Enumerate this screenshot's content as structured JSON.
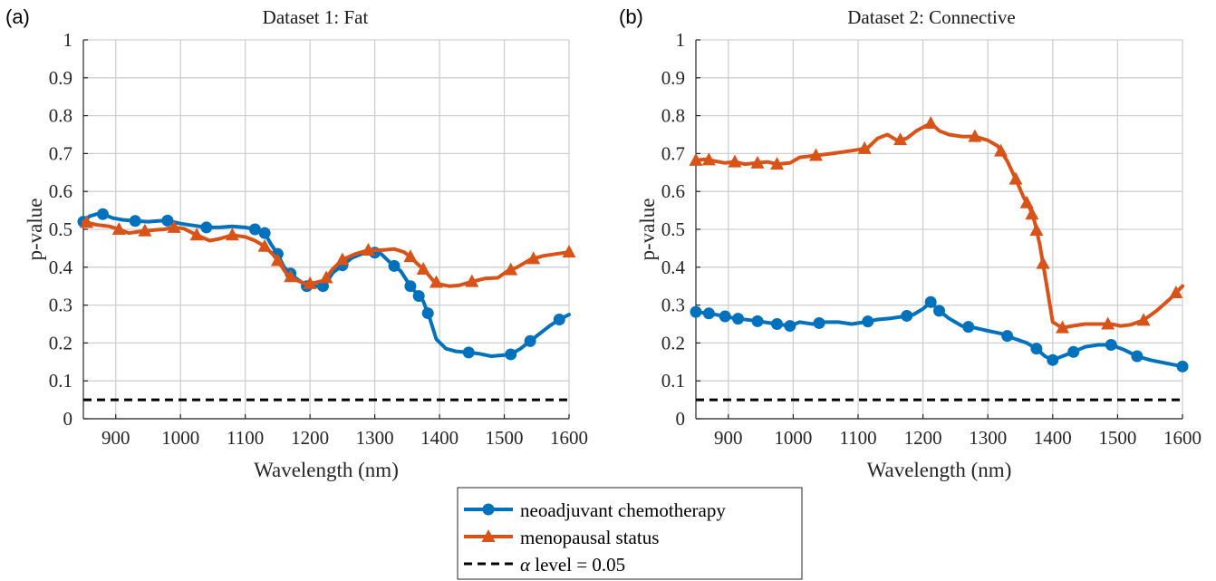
{
  "legend": {
    "items": [
      {
        "label": "neoadjuvant chemotherapy",
        "color": "#0072BD",
        "marker": "circle",
        "style": "solid"
      },
      {
        "label": "menopausal status",
        "color": "#D95319",
        "marker": "triangle",
        "style": "solid"
      },
      {
        "label_symbol": "α",
        "label_rest": " level = 0.05",
        "color": "#000000",
        "marker": "none",
        "style": "dashed"
      }
    ]
  },
  "chart_data": [
    {
      "panel_label": "(a)",
      "type": "line",
      "title": "Dataset 1: Fat",
      "xlabel": "Wavelength (nm)",
      "ylabel": "p-value",
      "xlim": [
        850,
        1600
      ],
      "ylim": [
        0,
        1
      ],
      "xticks": [
        900,
        1000,
        1100,
        1200,
        1300,
        1400,
        1500,
        1600
      ],
      "yticks": [
        0,
        0.1,
        0.2,
        0.3,
        0.4,
        0.5,
        0.6,
        0.7,
        0.8,
        0.9,
        1
      ],
      "grid": true,
      "alpha_level": 0.05,
      "series": [
        {
          "name": "neoadjuvant chemotherapy",
          "color": "#0072BD",
          "marker": "circle",
          "x": [
            850,
            860,
            870,
            880,
            895,
            910,
            930,
            950,
            965,
            980,
            1000,
            1020,
            1040,
            1060,
            1080,
            1100,
            1115,
            1130,
            1140,
            1150,
            1160,
            1175,
            1195,
            1210,
            1222,
            1235,
            1250,
            1265,
            1280,
            1295,
            1310,
            1325,
            1340,
            1355,
            1365,
            1375,
            1385,
            1395,
            1410,
            1425,
            1445,
            1460,
            1480,
            1500,
            1510,
            1525,
            1540,
            1555,
            1570,
            1585,
            1600
          ],
          "y": [
            0.52,
            0.535,
            0.54,
            0.54,
            0.53,
            0.525,
            0.522,
            0.52,
            0.522,
            0.523,
            0.515,
            0.51,
            0.505,
            0.505,
            0.508,
            0.505,
            0.5,
            0.49,
            0.46,
            0.435,
            0.4,
            0.375,
            0.35,
            0.35,
            0.35,
            0.385,
            0.405,
            0.425,
            0.435,
            0.44,
            0.435,
            0.41,
            0.39,
            0.35,
            0.33,
            0.31,
            0.265,
            0.21,
            0.185,
            0.178,
            0.175,
            0.172,
            0.165,
            0.168,
            0.17,
            0.185,
            0.205,
            0.225,
            0.245,
            0.262,
            0.275
          ],
          "marker_x": [
            850,
            880,
            930,
            980,
            1040,
            1115,
            1130,
            1150,
            1170,
            1195,
            1220,
            1250,
            1300,
            1330,
            1355,
            1368,
            1382,
            1445,
            1510,
            1540,
            1585
          ]
        },
        {
          "name": "menopausal status",
          "color": "#D95319",
          "marker": "triangle",
          "x": [
            850,
            870,
            890,
            905,
            920,
            940,
            960,
            975,
            990,
            1005,
            1025,
            1045,
            1060,
            1080,
            1100,
            1115,
            1130,
            1145,
            1155,
            1165,
            1180,
            1195,
            1210,
            1222,
            1235,
            1250,
            1270,
            1290,
            1310,
            1330,
            1345,
            1355,
            1365,
            1378,
            1390,
            1400,
            1415,
            1430,
            1450,
            1470,
            1490,
            1505,
            1520,
            1540,
            1560,
            1580,
            1600
          ],
          "y": [
            0.52,
            0.512,
            0.508,
            0.5,
            0.49,
            0.495,
            0.498,
            0.5,
            0.505,
            0.502,
            0.485,
            0.47,
            0.475,
            0.485,
            0.48,
            0.47,
            0.455,
            0.43,
            0.405,
            0.38,
            0.365,
            0.355,
            0.36,
            0.365,
            0.395,
            0.42,
            0.435,
            0.445,
            0.445,
            0.448,
            0.44,
            0.428,
            0.41,
            0.39,
            0.365,
            0.355,
            0.35,
            0.352,
            0.362,
            0.37,
            0.372,
            0.39,
            0.4,
            0.42,
            0.43,
            0.435,
            0.44
          ],
          "marker_x": [
            855,
            905,
            945,
            990,
            1025,
            1080,
            1130,
            1150,
            1170,
            1200,
            1225,
            1250,
            1290,
            1355,
            1375,
            1395,
            1450,
            1510,
            1545,
            1600
          ]
        },
        {
          "name": "α level = 0.05",
          "color": "#000000",
          "style": "dashed",
          "x": [
            850,
            1600
          ],
          "y": [
            0.05,
            0.05
          ]
        }
      ]
    },
    {
      "panel_label": "(b)",
      "type": "line",
      "title": "Dataset 2: Connective",
      "xlabel": "Wavelength (nm)",
      "ylabel": "p-value",
      "xlim": [
        850,
        1600
      ],
      "ylim": [
        0,
        1
      ],
      "xticks": [
        900,
        1000,
        1100,
        1200,
        1300,
        1400,
        1500,
        1600
      ],
      "yticks": [
        0,
        0.1,
        0.2,
        0.3,
        0.4,
        0.5,
        0.6,
        0.7,
        0.8,
        0.9,
        1
      ],
      "grid": true,
      "alpha_level": 0.05,
      "series": [
        {
          "name": "neoadjuvant chemotherapy",
          "color": "#0072BD",
          "marker": "circle",
          "x": [
            850,
            870,
            890,
            910,
            935,
            955,
            975,
            995,
            1010,
            1030,
            1050,
            1070,
            1090,
            1110,
            1130,
            1150,
            1170,
            1185,
            1200,
            1212,
            1225,
            1240,
            1260,
            1280,
            1300,
            1320,
            1340,
            1360,
            1375,
            1388,
            1400,
            1415,
            1430,
            1450,
            1470,
            1490,
            1510,
            1530,
            1550,
            1570,
            1600
          ],
          "y": [
            0.282,
            0.278,
            0.272,
            0.265,
            0.26,
            0.255,
            0.25,
            0.245,
            0.255,
            0.25,
            0.255,
            0.255,
            0.25,
            0.255,
            0.262,
            0.265,
            0.27,
            0.275,
            0.29,
            0.308,
            0.285,
            0.265,
            0.245,
            0.24,
            0.232,
            0.225,
            0.212,
            0.2,
            0.185,
            0.165,
            0.155,
            0.165,
            0.175,
            0.19,
            0.195,
            0.195,
            0.182,
            0.165,
            0.155,
            0.148,
            0.138
          ],
          "marker_x": [
            850,
            870,
            895,
            915,
            945,
            975,
            995,
            1040,
            1115,
            1175,
            1212,
            1225,
            1270,
            1330,
            1375,
            1400,
            1432,
            1490,
            1530,
            1600
          ]
        },
        {
          "name": "menopausal status",
          "color": "#D95319",
          "marker": "triangle",
          "x": [
            850,
            865,
            880,
            895,
            910,
            925,
            945,
            960,
            975,
            995,
            1010,
            1035,
            1060,
            1080,
            1100,
            1115,
            1130,
            1145,
            1160,
            1175,
            1190,
            1212,
            1225,
            1240,
            1260,
            1280,
            1300,
            1315,
            1330,
            1345,
            1355,
            1365,
            1372,
            1380,
            1390,
            1400,
            1415,
            1430,
            1450,
            1470,
            1490,
            1505,
            1520,
            1540,
            1560,
            1580,
            1600
          ],
          "y": [
            0.682,
            0.685,
            0.68,
            0.675,
            0.678,
            0.672,
            0.675,
            0.678,
            0.672,
            0.675,
            0.69,
            0.695,
            0.7,
            0.705,
            0.71,
            0.715,
            0.74,
            0.75,
            0.735,
            0.74,
            0.76,
            0.78,
            0.76,
            0.75,
            0.745,
            0.745,
            0.735,
            0.72,
            0.68,
            0.625,
            0.585,
            0.555,
            0.52,
            0.46,
            0.36,
            0.255,
            0.24,
            0.245,
            0.25,
            0.25,
            0.25,
            0.245,
            0.248,
            0.26,
            0.285,
            0.315,
            0.35
          ],
          "marker_x": [
            850,
            870,
            910,
            945,
            975,
            1035,
            1110,
            1165,
            1212,
            1280,
            1320,
            1343,
            1360,
            1368,
            1375,
            1385,
            1415,
            1485,
            1540,
            1590
          ]
        },
        {
          "name": "α level = 0.05",
          "color": "#000000",
          "style": "dashed",
          "x": [
            850,
            1600
          ],
          "y": [
            0.05,
            0.05
          ]
        }
      ]
    }
  ]
}
